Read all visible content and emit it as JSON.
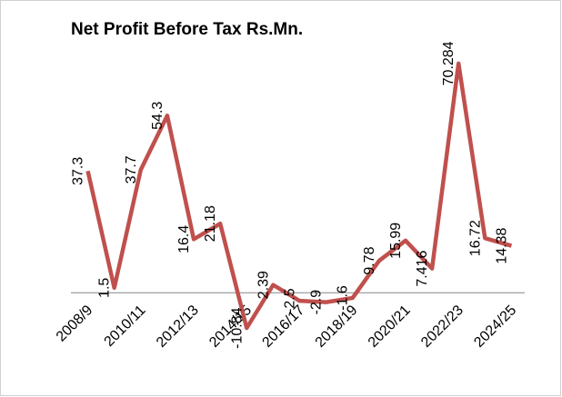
{
  "chart_data": {
    "type": "line",
    "title": "Net Profit Before Tax Rs.Mn.",
    "categories": [
      "2008/9",
      null,
      "2010/11",
      null,
      "2012/13",
      null,
      "2014/15",
      null,
      "2016/17",
      null,
      "2018/19",
      null,
      "2020/21",
      null,
      "2022/23",
      null,
      "2024/25"
    ],
    "series": [
      {
        "name": "Net Profit Before Tax",
        "color": "#c0504d",
        "values": [
          37.3,
          1.5,
          37.7,
          54.3,
          16.4,
          21.18,
          -10.84,
          2.39,
          -2.5,
          -2.9,
          -1.6,
          9.78,
          15.99,
          7.416,
          70.284,
          16.72,
          14.38
        ]
      }
    ],
    "ylim": [
      -20,
      80
    ],
    "data_labels": true
  }
}
